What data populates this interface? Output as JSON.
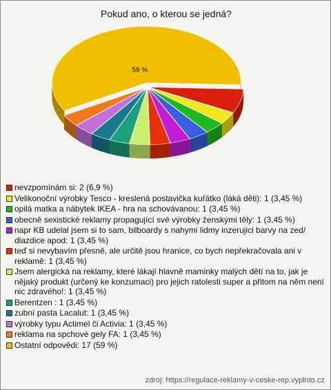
{
  "chart_data": {
    "type": "pie3d",
    "title": "Pokud ano, o kterou se jedná?",
    "categories": [
      "nevzpomínám si: 2 (6,9 %)",
      "Velikonoční výrobky Tesco - kreslená postavička kuřátko (láká děti): 1 (3,45 %)",
      "opilá matka a nábytek IKEA - hra na schovávanou: 1 (3,45 %)",
      "obecně sexistické reklamy propagující své výrobky ženskými těly: 1 (3,45 %)",
      "napr KB udelal jsem si to sam, bilboardy s nahymi lidmy inzerujici barvy na zed/ dlazdice apod: 1 (3,45 %)",
      "teď si nevybavím přesně, ale určitě jsou hranice, co bych nepřekračovala ani v reklamě: 1 (3,45 %)",
      "Jsem alergická na reklamy, které lákají hlavně maminky malých dětí na to, jak je nějaký produkt (určený ke konzumaci) pro jejich ratolesti super a přitom na něm není nic zdravého!: 1 (3,45 %)",
      " Berentzen : 1 (3,45 %)",
      "zubní pasta Lacalut: 1 (3,45 %)",
      "výrobky typu Actimel či Activia: 1 (3,45 %)",
      "reklama na spchové gely FA: 1 (3,45 %)",
      "Ostatní odpovědi: 17 (59 %)"
    ],
    "values": [
      6.9,
      3.45,
      3.45,
      3.45,
      3.45,
      3.45,
      3.45,
      3.45,
      3.45,
      3.45,
      3.45,
      59
    ],
    "value_labels": [
      null,
      null,
      null,
      null,
      null,
      null,
      null,
      null,
      null,
      null,
      null,
      "59 %"
    ],
    "colors": [
      "#d8200c",
      "#f0e81a",
      "#1fb81f",
      "#3a5ee0",
      "#c21cd8",
      "#e8300c",
      "#c8f070",
      "#1aa07a",
      "#1a7890",
      "#c070d8",
      "#f07a1a",
      "#f0c000"
    ],
    "source": "zdroj: https://regulace-reklamy-v-ceske-rep.vyplnto.cz"
  }
}
